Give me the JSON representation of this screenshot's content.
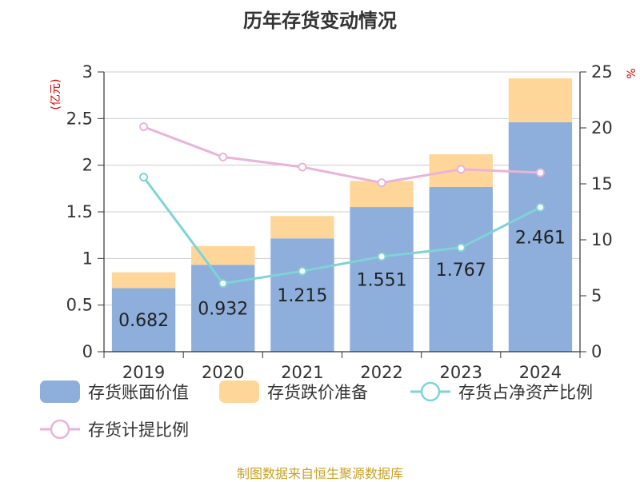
{
  "chart_data": {
    "type": "bar",
    "title": "历年存货变动情况",
    "categories": [
      "2019",
      "2020",
      "2021",
      "2022",
      "2023",
      "2024"
    ],
    "y_left": {
      "unit": "(亿元)",
      "range": [
        0,
        3
      ],
      "ticks": [
        "0",
        "0.5",
        "1",
        "1.5",
        "2",
        "2.5",
        "3"
      ]
    },
    "y_right": {
      "unit": "%",
      "range": [
        0,
        25
      ],
      "ticks": [
        "0",
        "5",
        "10",
        "15",
        "20",
        "25"
      ]
    },
    "stacked": true,
    "series": [
      {
        "name": "存货账面价值",
        "type": "bar",
        "axis": "left",
        "color": "#8eaedb",
        "values": [
          0.682,
          0.932,
          1.215,
          1.551,
          1.767,
          2.461
        ],
        "labels": [
          "0.682",
          "0.932",
          "1.215",
          "1.551",
          "1.767",
          "2.461"
        ]
      },
      {
        "name": "存货跌价准备",
        "type": "bar",
        "axis": "left",
        "color": "#ffd699",
        "values": [
          0.17,
          0.2,
          0.24,
          0.28,
          0.35,
          0.47
        ]
      },
      {
        "name": "存货占净资产比例",
        "type": "line",
        "axis": "right",
        "color": "#7fd3d6",
        "values": [
          15.6,
          6.1,
          7.2,
          8.5,
          9.3,
          12.9
        ]
      },
      {
        "name": "存货计提比例",
        "type": "line",
        "axis": "right",
        "color": "#e8b4d9",
        "values": [
          20.1,
          17.4,
          16.5,
          15.1,
          16.3,
          16.0
        ]
      }
    ],
    "grid": true,
    "legend_position": "bottom"
  },
  "footer": {
    "source": "制图数据来自恒生聚源数据库"
  }
}
